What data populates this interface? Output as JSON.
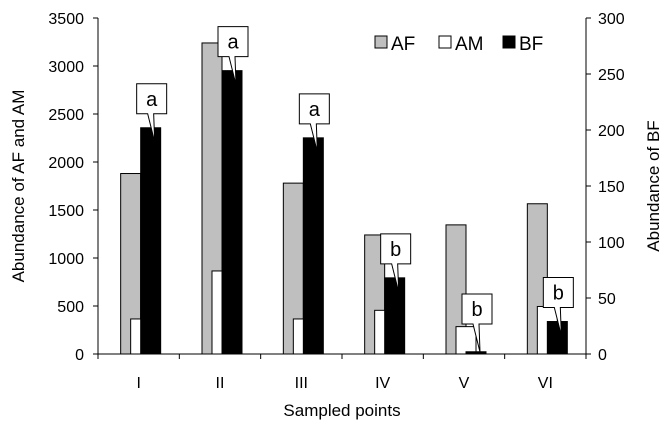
{
  "chart_data": {
    "type": "bar",
    "categories": [
      "I",
      "II",
      "III",
      "IV",
      "V",
      "VI"
    ],
    "series": [
      {
        "name": "AF",
        "axis": "left",
        "color": "#bfbfbf",
        "values": [
          1880,
          3240,
          1780,
          1240,
          1345,
          1565
        ]
      },
      {
        "name": "AM",
        "axis": "left",
        "color": "#ffffff",
        "values": [
          365,
          865,
          365,
          455,
          285,
          495
        ]
      },
      {
        "name": "BF",
        "axis": "right",
        "color": "#000000",
        "values": [
          202,
          253,
          193,
          68,
          2,
          29
        ]
      }
    ],
    "xlabel": "Sampled points",
    "ylabel_left": "Abundance of AF and AM",
    "ylabel_right": "Abundance of BF",
    "ylim_left": [
      0,
      3500
    ],
    "yticks_left": [
      0,
      500,
      1000,
      1500,
      2000,
      2500,
      3000,
      3500
    ],
    "ylim_right": [
      0,
      300
    ],
    "yticks_right": [
      0,
      50,
      100,
      150,
      200,
      250,
      300
    ],
    "annotations": [
      "a",
      "a",
      "a",
      "b",
      "b",
      "b"
    ],
    "legend": {
      "position": "top-right",
      "entries": [
        "AF",
        "AM",
        "BF"
      ]
    },
    "grid": false
  }
}
